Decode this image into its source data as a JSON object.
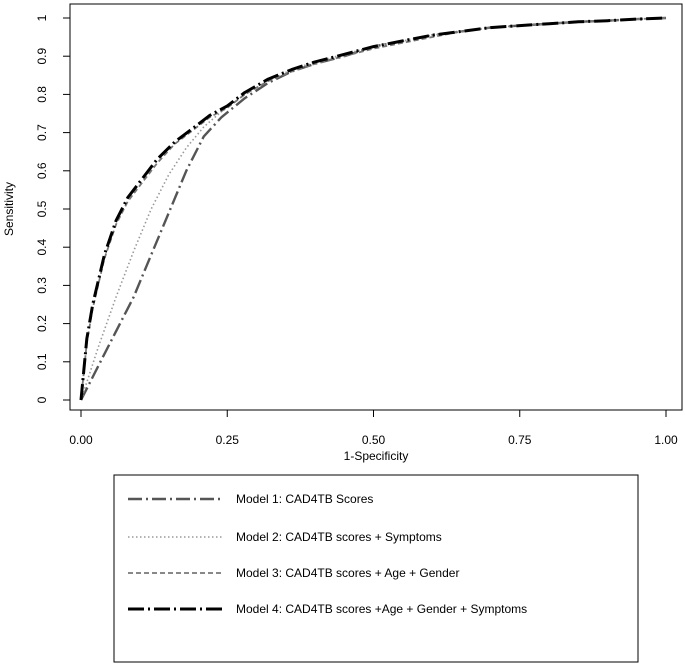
{
  "chart_data": {
    "type": "line",
    "xlabel": "1-Specificity",
    "ylabel": "Sensitivity",
    "xlim": [
      0,
      1
    ],
    "ylim": [
      0,
      1
    ],
    "x_ticks": [
      0,
      0.25,
      0.5,
      0.75,
      1
    ],
    "x_tick_labels": [
      "0.00",
      "0.25",
      "0.50",
      "0.75",
      "1.00"
    ],
    "y_ticks": [
      0,
      0.1,
      0.2,
      0.3,
      0.4,
      0.5,
      0.6,
      0.7,
      0.8,
      0.9,
      1
    ],
    "y_tick_labels": [
      "0",
      "0.1",
      "0.2",
      "0.3",
      "0.4",
      "0.5",
      "0.6",
      "0.7",
      "0.8",
      "0.9",
      "1"
    ],
    "grid": false,
    "legend_position": "bottom",
    "series": [
      {
        "name": "Model 1: CAD4TB Scores",
        "style": "longdash-dot",
        "color": "#555555",
        "x": [
          0,
          0.03,
          0.06,
          0.09,
          0.12,
          0.15,
          0.18,
          0.21,
          0.24,
          0.28,
          0.32,
          0.36,
          0.4,
          0.45,
          0.5,
          0.55,
          0.6,
          0.65,
          0.7,
          0.75,
          0.8,
          0.85,
          0.9,
          0.95,
          1
        ],
        "y": [
          0,
          0.09,
          0.18,
          0.27,
          0.38,
          0.49,
          0.6,
          0.69,
          0.74,
          0.79,
          0.83,
          0.86,
          0.88,
          0.9,
          0.925,
          0.94,
          0.955,
          0.965,
          0.975,
          0.98,
          0.985,
          0.99,
          0.993,
          0.997,
          1
        ]
      },
      {
        "name": "Model 2: CAD4TB scores + Symptoms",
        "style": "dotted",
        "color": "#999999",
        "x": [
          0,
          0.03,
          0.06,
          0.09,
          0.12,
          0.15,
          0.18,
          0.21,
          0.24,
          0.28,
          0.32,
          0.36,
          0.4,
          0.45,
          0.5,
          0.55,
          0.6,
          0.65,
          0.7,
          0.75,
          0.8,
          0.85,
          0.9,
          0.95,
          1
        ],
        "y": [
          0,
          0.14,
          0.27,
          0.39,
          0.5,
          0.59,
          0.66,
          0.715,
          0.755,
          0.8,
          0.835,
          0.865,
          0.885,
          0.905,
          0.925,
          0.94,
          0.955,
          0.965,
          0.975,
          0.98,
          0.985,
          0.99,
          0.993,
          0.997,
          1
        ]
      },
      {
        "name": "Model 3: CAD4TB scores + Age + Gender",
        "style": "dashed",
        "color": "#777777",
        "x": [
          0,
          0.01,
          0.02,
          0.04,
          0.06,
          0.08,
          0.1,
          0.13,
          0.16,
          0.19,
          0.22,
          0.25,
          0.28,
          0.32,
          0.36,
          0.4,
          0.45,
          0.5,
          0.55,
          0.6,
          0.65,
          0.7,
          0.75,
          0.8,
          0.85,
          0.9,
          0.95,
          1
        ],
        "y": [
          0,
          0.15,
          0.24,
          0.37,
          0.46,
          0.52,
          0.56,
          0.62,
          0.67,
          0.705,
          0.74,
          0.765,
          0.8,
          0.835,
          0.86,
          0.88,
          0.9,
          0.92,
          0.935,
          0.95,
          0.965,
          0.975,
          0.98,
          0.985,
          0.99,
          0.993,
          0.997,
          1
        ]
      },
      {
        "name": "Model 4: CAD4TB scores +Age + Gender + Symptoms",
        "style": "bold-longdash-dot",
        "color": "#000000",
        "x": [
          0,
          0.01,
          0.02,
          0.04,
          0.06,
          0.08,
          0.1,
          0.13,
          0.16,
          0.19,
          0.22,
          0.25,
          0.28,
          0.32,
          0.36,
          0.4,
          0.45,
          0.5,
          0.55,
          0.6,
          0.65,
          0.7,
          0.75,
          0.8,
          0.85,
          0.9,
          0.95,
          1
        ],
        "y": [
          0,
          0.16,
          0.25,
          0.38,
          0.47,
          0.53,
          0.57,
          0.63,
          0.675,
          0.71,
          0.745,
          0.77,
          0.805,
          0.84,
          0.865,
          0.885,
          0.905,
          0.925,
          0.94,
          0.955,
          0.965,
          0.975,
          0.98,
          0.985,
          0.99,
          0.993,
          0.997,
          1
        ]
      }
    ]
  }
}
